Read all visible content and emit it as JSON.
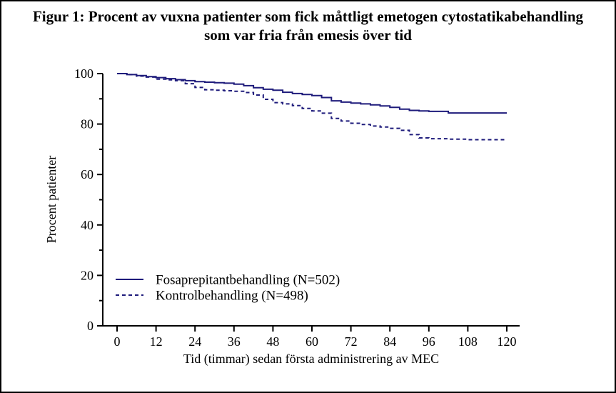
{
  "title": {
    "line1": "Figur 1: Procent av vuxna patienter som fick måttligt emetogen cytostatikabehandling",
    "line2": "som var fria från emesis över tid"
  },
  "chart_data": {
    "type": "line",
    "subtype": "kaplan-meier-step",
    "title": "Figur 1: Procent av vuxna patienter som fick måttligt emetogen cytostatikabehandling som var fria från emesis över tid",
    "xlabel": "Tid (timmar) sedan första administrering av MEC",
    "ylabel": "Procent patienter",
    "xlim": [
      0,
      120
    ],
    "ylim": [
      0,
      100
    ],
    "xticks": [
      0,
      12,
      24,
      36,
      48,
      60,
      72,
      84,
      96,
      108,
      120
    ],
    "yticks": [
      0,
      20,
      40,
      60,
      80,
      100
    ],
    "y_minor_ticks": [
      10,
      30,
      50,
      70,
      90
    ],
    "grid": false,
    "legend_position": "inside-lower-left",
    "line_color": "#1e1b7b",
    "x": [
      0,
      3,
      6,
      9,
      12,
      15,
      18,
      21,
      24,
      27,
      30,
      33,
      36,
      39,
      42,
      45,
      48,
      51,
      54,
      57,
      60,
      63,
      66,
      69,
      72,
      75,
      78,
      81,
      84,
      87,
      90,
      93,
      96,
      102,
      108,
      114,
      120
    ],
    "series": [
      {
        "name": "Fosaprepitantbehandling (N=502)",
        "style": "solid",
        "values": [
          100,
          99.6,
          99.2,
          98.8,
          98.4,
          98.0,
          97.6,
          97.2,
          96.8,
          96.6,
          96.4,
          96.2,
          95.8,
          95.2,
          94.4,
          93.8,
          93.4,
          92.6,
          92.1,
          91.7,
          91.3,
          90.5,
          89.2,
          88.7,
          88.3,
          88.0,
          87.6,
          87.2,
          86.6,
          85.9,
          85.4,
          85.2,
          85.0,
          84.4,
          84.4,
          84.4,
          84.4
        ]
      },
      {
        "name": "Kontrolbehandling (N=498)",
        "style": "dashed",
        "values": [
          100,
          99.6,
          99.0,
          98.6,
          97.8,
          97.5,
          97.2,
          96.0,
          94.5,
          93.6,
          93.4,
          93.2,
          93.0,
          92.5,
          91.5,
          89.8,
          88.5,
          88.0,
          87.3,
          86.2,
          85.2,
          84.3,
          82.2,
          81.2,
          80.3,
          79.8,
          79.2,
          78.8,
          78.3,
          77.5,
          75.8,
          74.5,
          74.2,
          74.0,
          73.8,
          73.8,
          73.8
        ]
      }
    ]
  }
}
